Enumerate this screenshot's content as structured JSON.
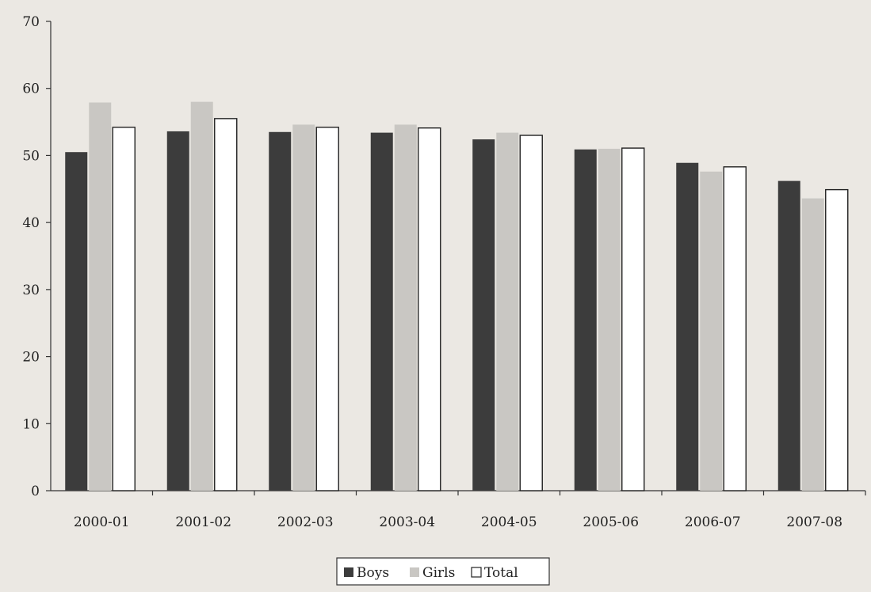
{
  "chart_data": {
    "type": "bar",
    "categories": [
      "2000-01",
      "2001-02",
      "2002-03",
      "2003-04",
      "2004-05",
      "2005-06",
      "2006-07",
      "2007-08"
    ],
    "series": [
      {
        "name": "Boys",
        "color": "#3c3c3c",
        "values": [
          50.5,
          53.6,
          53.5,
          53.4,
          52.4,
          50.9,
          48.9,
          46.2
        ]
      },
      {
        "name": "Girls",
        "color": "#c9c7c3",
        "values": [
          57.9,
          58.0,
          54.6,
          54.6,
          53.4,
          51.0,
          47.6,
          43.6
        ]
      },
      {
        "name": "Total",
        "color": "#ffffff",
        "values": [
          54.2,
          55.5,
          54.2,
          54.1,
          53.0,
          51.1,
          48.3,
          44.9
        ]
      }
    ],
    "ylim": [
      0,
      70
    ],
    "yticks": [
      0,
      10,
      20,
      30,
      40,
      50,
      60,
      70
    ],
    "title": "",
    "xlabel": "",
    "ylabel": "",
    "legend_position": "bottom-center",
    "grid": false
  }
}
